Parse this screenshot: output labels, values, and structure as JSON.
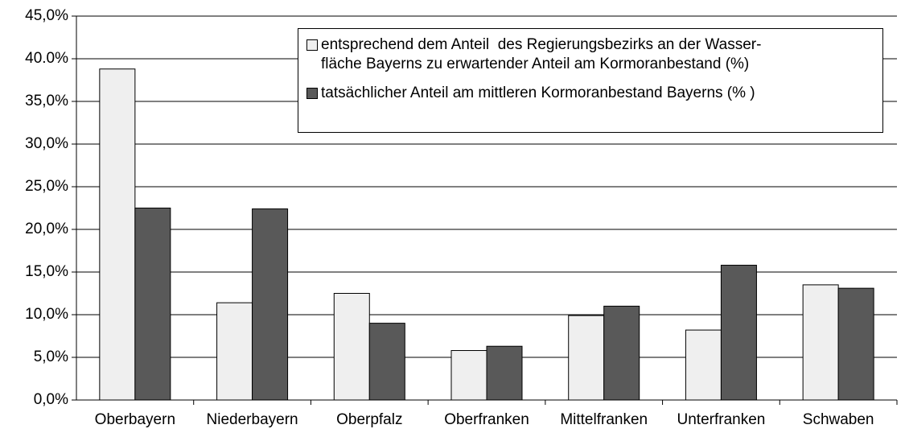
{
  "chart_data": {
    "type": "bar",
    "categories": [
      "Oberbayern",
      "Niederbayern",
      "Oberpfalz",
      "Oberfranken",
      "Mittelfranken",
      "Unterfranken",
      "Schwaben"
    ],
    "series": [
      {
        "name": "entsprechend dem Anteil  des Regierungsbezirks an der Wasser-\nfläche Bayerns zu erwartender Anteil am Kormoranbestand (%)",
        "color": "#efefef",
        "values": [
          38.8,
          11.4,
          12.5,
          5.8,
          9.9,
          8.2,
          13.5
        ]
      },
      {
        "name": "tatsächlicher Anteil am mittleren Kormoranbestand Bayerns (% )",
        "color": "#595959",
        "values": [
          22.5,
          22.4,
          9.0,
          6.3,
          11.0,
          15.8,
          13.1
        ]
      }
    ],
    "ylim": [
      0,
      45
    ],
    "yticks": [
      {
        "value": 0,
        "label": "0,0%"
      },
      {
        "value": 5,
        "label": "5,0%"
      },
      {
        "value": 10,
        "label": "10,0%"
      },
      {
        "value": 15,
        "label": "15,0%"
      },
      {
        "value": 20,
        "label": "20,0%"
      },
      {
        "value": 25,
        "label": "25,0%"
      },
      {
        "value": 30,
        "label": "30,0%"
      },
      {
        "value": 35,
        "label": "35,0%"
      },
      {
        "value": 40,
        "label": "40.0%"
      },
      {
        "value": 45,
        "label": "45,0%"
      }
    ],
    "grid": true,
    "legend": "upper right"
  }
}
